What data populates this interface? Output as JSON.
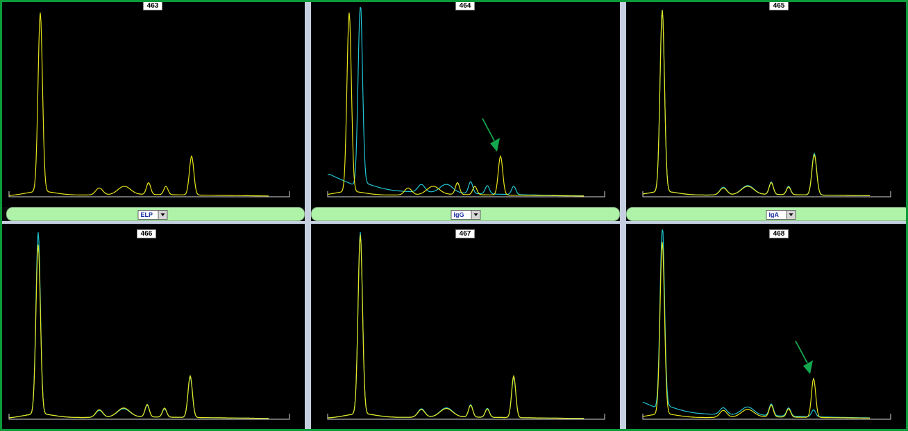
{
  "panels": [
    {
      "id": "463",
      "arrow": false,
      "traces": [
        "yellow"
      ]
    },
    {
      "id": "464",
      "arrow": true,
      "traces": [
        "yellow",
        "cyan"
      ]
    },
    {
      "id": "465",
      "arrow": false,
      "traces": [
        "yellow",
        "cyan"
      ]
    },
    {
      "id": "466",
      "arrow": false,
      "traces": [
        "yellow",
        "cyan"
      ]
    },
    {
      "id": "467",
      "arrow": false,
      "traces": [
        "yellow",
        "cyan"
      ]
    },
    {
      "id": "468",
      "arrow": true,
      "traces": [
        "yellow",
        "cyan"
      ]
    }
  ],
  "selectors": [
    {
      "value": "ELP"
    },
    {
      "value": "IgG"
    },
    {
      "value": "IgA"
    }
  ],
  "colors": {
    "frame": "#0c9a3a",
    "trace_yellow": "#e8e41a",
    "trace_cyan": "#22c7d6",
    "arrow": "#14a84e",
    "selector_bar": "#aef3a8",
    "selector_text": "#1a2c9e"
  }
}
